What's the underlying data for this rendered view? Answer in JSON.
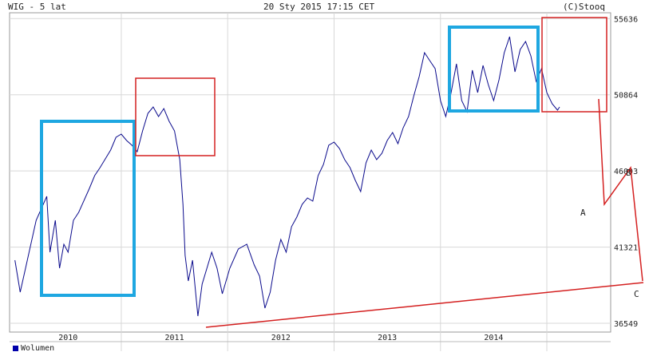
{
  "header": {
    "left": "WIG - 5 lat",
    "center": "20 Sty 2015 17:15 CET",
    "right": "(C)Stooq"
  },
  "legend": {
    "label": "Wolumen",
    "color": "#0000aa"
  },
  "chart_data": {
    "type": "line",
    "series_color": "#0a0a8c",
    "grid": true,
    "ylim": [
      36000,
      56000
    ],
    "y_ticks": [
      36549,
      41321,
      46093,
      50864,
      55636
    ],
    "x_labels": [
      "2010",
      "2011",
      "2012",
      "2013",
      "2014"
    ],
    "annotation_labels": [
      "A",
      "B",
      "C"
    ],
    "annotation_colors": {
      "red": "#d42020",
      "blue": "#1ea7e1"
    },
    "series": [
      {
        "values": [
          [
            2009.5,
            40500
          ],
          [
            2009.55,
            38500
          ],
          [
            2009.6,
            40000
          ],
          [
            2009.7,
            43000
          ],
          [
            2009.8,
            44500
          ],
          [
            2009.83,
            41000
          ],
          [
            2009.88,
            43000
          ],
          [
            2009.92,
            40000
          ],
          [
            2009.96,
            41500
          ],
          [
            2010.0,
            41000
          ],
          [
            2010.05,
            43000
          ],
          [
            2010.1,
            43500
          ],
          [
            2010.2,
            45000
          ],
          [
            2010.25,
            45800
          ],
          [
            2010.3,
            46300
          ],
          [
            2010.4,
            47400
          ],
          [
            2010.45,
            48200
          ],
          [
            2010.5,
            48400
          ],
          [
            2010.55,
            48000
          ],
          [
            2010.6,
            47700
          ],
          [
            2010.65,
            47300
          ],
          [
            2010.7,
            48600
          ],
          [
            2010.75,
            49700
          ],
          [
            2010.8,
            50100
          ],
          [
            2010.85,
            49500
          ],
          [
            2010.9,
            50000
          ],
          [
            2010.95,
            49200
          ],
          [
            2011.0,
            48600
          ],
          [
            2011.05,
            46800
          ],
          [
            2011.08,
            44000
          ],
          [
            2011.1,
            40800
          ],
          [
            2011.13,
            39200
          ],
          [
            2011.17,
            40500
          ],
          [
            2011.22,
            37000
          ],
          [
            2011.26,
            39000
          ],
          [
            2011.35,
            41000
          ],
          [
            2011.4,
            40000
          ],
          [
            2011.45,
            38400
          ],
          [
            2011.52,
            40000
          ],
          [
            2011.6,
            41200
          ],
          [
            2011.68,
            41500
          ],
          [
            2011.75,
            40200
          ],
          [
            2011.8,
            39500
          ],
          [
            2011.85,
            37500
          ],
          [
            2011.9,
            38500
          ],
          [
            2011.95,
            40500
          ],
          [
            2012.0,
            41800
          ],
          [
            2012.05,
            41000
          ],
          [
            2012.1,
            42600
          ],
          [
            2012.15,
            43200
          ],
          [
            2012.2,
            44000
          ],
          [
            2012.25,
            44400
          ],
          [
            2012.3,
            44200
          ],
          [
            2012.35,
            45800
          ],
          [
            2012.4,
            46500
          ],
          [
            2012.45,
            47700
          ],
          [
            2012.5,
            47900
          ],
          [
            2012.55,
            47500
          ],
          [
            2012.6,
            46800
          ],
          [
            2012.65,
            46300
          ],
          [
            2012.7,
            45500
          ],
          [
            2012.75,
            44800
          ],
          [
            2012.8,
            46600
          ],
          [
            2012.85,
            47400
          ],
          [
            2012.9,
            46800
          ],
          [
            2012.95,
            47200
          ],
          [
            2013.0,
            48000
          ],
          [
            2013.05,
            48500
          ],
          [
            2013.1,
            47800
          ],
          [
            2013.15,
            48800
          ],
          [
            2013.2,
            49500
          ],
          [
            2013.25,
            50800
          ],
          [
            2013.3,
            52000
          ],
          [
            2013.35,
            53500
          ],
          [
            2013.4,
            53000
          ],
          [
            2013.45,
            52500
          ],
          [
            2013.5,
            50500
          ],
          [
            2013.55,
            49500
          ],
          [
            2013.6,
            51000
          ],
          [
            2013.65,
            52800
          ],
          [
            2013.7,
            50500
          ],
          [
            2013.75,
            49800
          ],
          [
            2013.8,
            52400
          ],
          [
            2013.85,
            51000
          ],
          [
            2013.9,
            52700
          ],
          [
            2013.95,
            51500
          ],
          [
            2014.0,
            50500
          ],
          [
            2014.05,
            51800
          ],
          [
            2014.1,
            53500
          ],
          [
            2014.15,
            54500
          ],
          [
            2014.2,
            52300
          ],
          [
            2014.25,
            53700
          ],
          [
            2014.3,
            54200
          ],
          [
            2014.35,
            53300
          ],
          [
            2014.4,
            51700
          ],
          [
            2014.45,
            52500
          ],
          [
            2014.5,
            51000
          ],
          [
            2014.55,
            50300
          ],
          [
            2014.6,
            49900
          ],
          [
            2014.62,
            50100
          ]
        ]
      }
    ]
  }
}
